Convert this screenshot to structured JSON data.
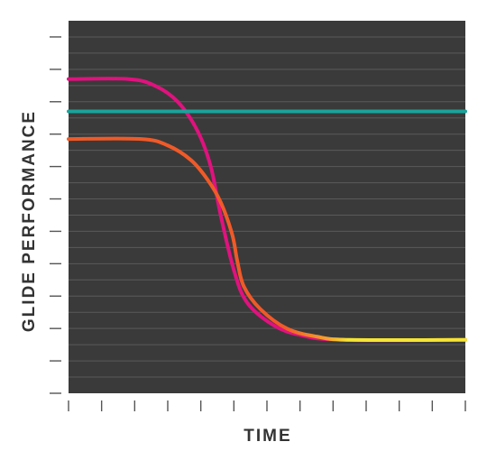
{
  "chart_data": {
    "type": "line",
    "title": "",
    "xlabel": "TIME",
    "ylabel": "GLIDE PERFORMANCE",
    "xlim": [
      0,
      12
    ],
    "ylim": [
      0,
      11.5
    ],
    "grid": true,
    "legend": "none",
    "x_tick_count": 13,
    "y_tick_count": 12,
    "series": [
      {
        "color": "#e0127e",
        "points": [
          [
            0,
            9.7
          ],
          [
            1.8,
            9.7
          ],
          [
            2.6,
            9.5
          ],
          [
            3.3,
            9.0
          ],
          [
            3.9,
            8.1
          ],
          [
            4.3,
            7.0
          ],
          [
            4.6,
            5.5
          ],
          [
            5.0,
            3.8
          ],
          [
            5.4,
            2.8
          ],
          [
            6.2,
            2.1
          ],
          [
            7.0,
            1.8
          ],
          [
            8.2,
            1.65
          ],
          [
            12,
            1.65
          ]
        ]
      },
      {
        "color": "#f05a28",
        "points": [
          [
            0,
            7.85
          ],
          [
            2.2,
            7.85
          ],
          [
            3.0,
            7.65
          ],
          [
            3.7,
            7.2
          ],
          [
            4.2,
            6.6
          ],
          [
            4.6,
            5.9
          ],
          [
            4.95,
            4.9
          ],
          [
            5.1,
            4.1
          ],
          [
            5.3,
            3.3
          ],
          [
            5.8,
            2.6
          ],
          [
            6.6,
            2.0
          ],
          [
            7.5,
            1.75
          ],
          [
            8.5,
            1.65
          ],
          [
            12,
            1.65
          ]
        ]
      },
      {
        "color": "#1aa39b",
        "points": [
          [
            0,
            8.7
          ],
          [
            12,
            8.7
          ]
        ]
      }
    ]
  },
  "colors": {
    "plot_background": "#3a3a3a",
    "gridline": "#5a5a5a",
    "axis_tick": "#555555",
    "label_text": "#333333",
    "tail_highlight": "#f5e532"
  }
}
